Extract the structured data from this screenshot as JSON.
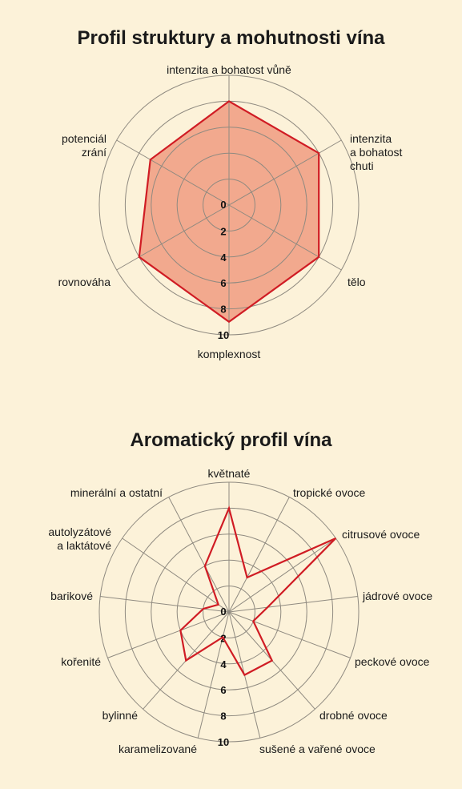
{
  "chart_data": [
    {
      "type": "radar",
      "title": "Profil struktury a mohutnosti vína",
      "axes": [
        "intenzita a bohatost vůně",
        "intenzita a bohatost chuti",
        "tělo",
        "komplexnost",
        "rovnováha",
        "potenciál zrání"
      ],
      "ticks": [
        "0",
        "2",
        "4",
        "6",
        "8",
        "10"
      ],
      "rlim": [
        0,
        10
      ],
      "grid": true,
      "series": [
        {
          "values": [
            8,
            8,
            8,
            9,
            8,
            7
          ],
          "color": "#d01c24",
          "fill": "#f2a98e"
        }
      ]
    },
    {
      "type": "radar",
      "title": "Aromatický profil vína",
      "axes": [
        "květnaté",
        "tropické ovoce",
        "citrusové ovoce",
        "jádrové ovoce",
        "peckové ovoce",
        "drobné ovoce",
        "sušené a vařené ovoce",
        "karamelizované",
        "bylinné",
        "kořenité",
        "barikové",
        "autolyzátové a laktátové",
        "minerální a ostatní"
      ],
      "ticks": [
        "0",
        "2",
        "4",
        "6",
        "8",
        "10"
      ],
      "rlim": [
        0,
        10
      ],
      "grid": true,
      "series": [
        {
          "values": [
            8,
            3,
            10,
            3,
            2,
            5,
            5,
            2,
            5,
            4,
            2,
            1,
            4
          ],
          "color": "#d01c24",
          "fill": "none"
        }
      ]
    }
  ]
}
